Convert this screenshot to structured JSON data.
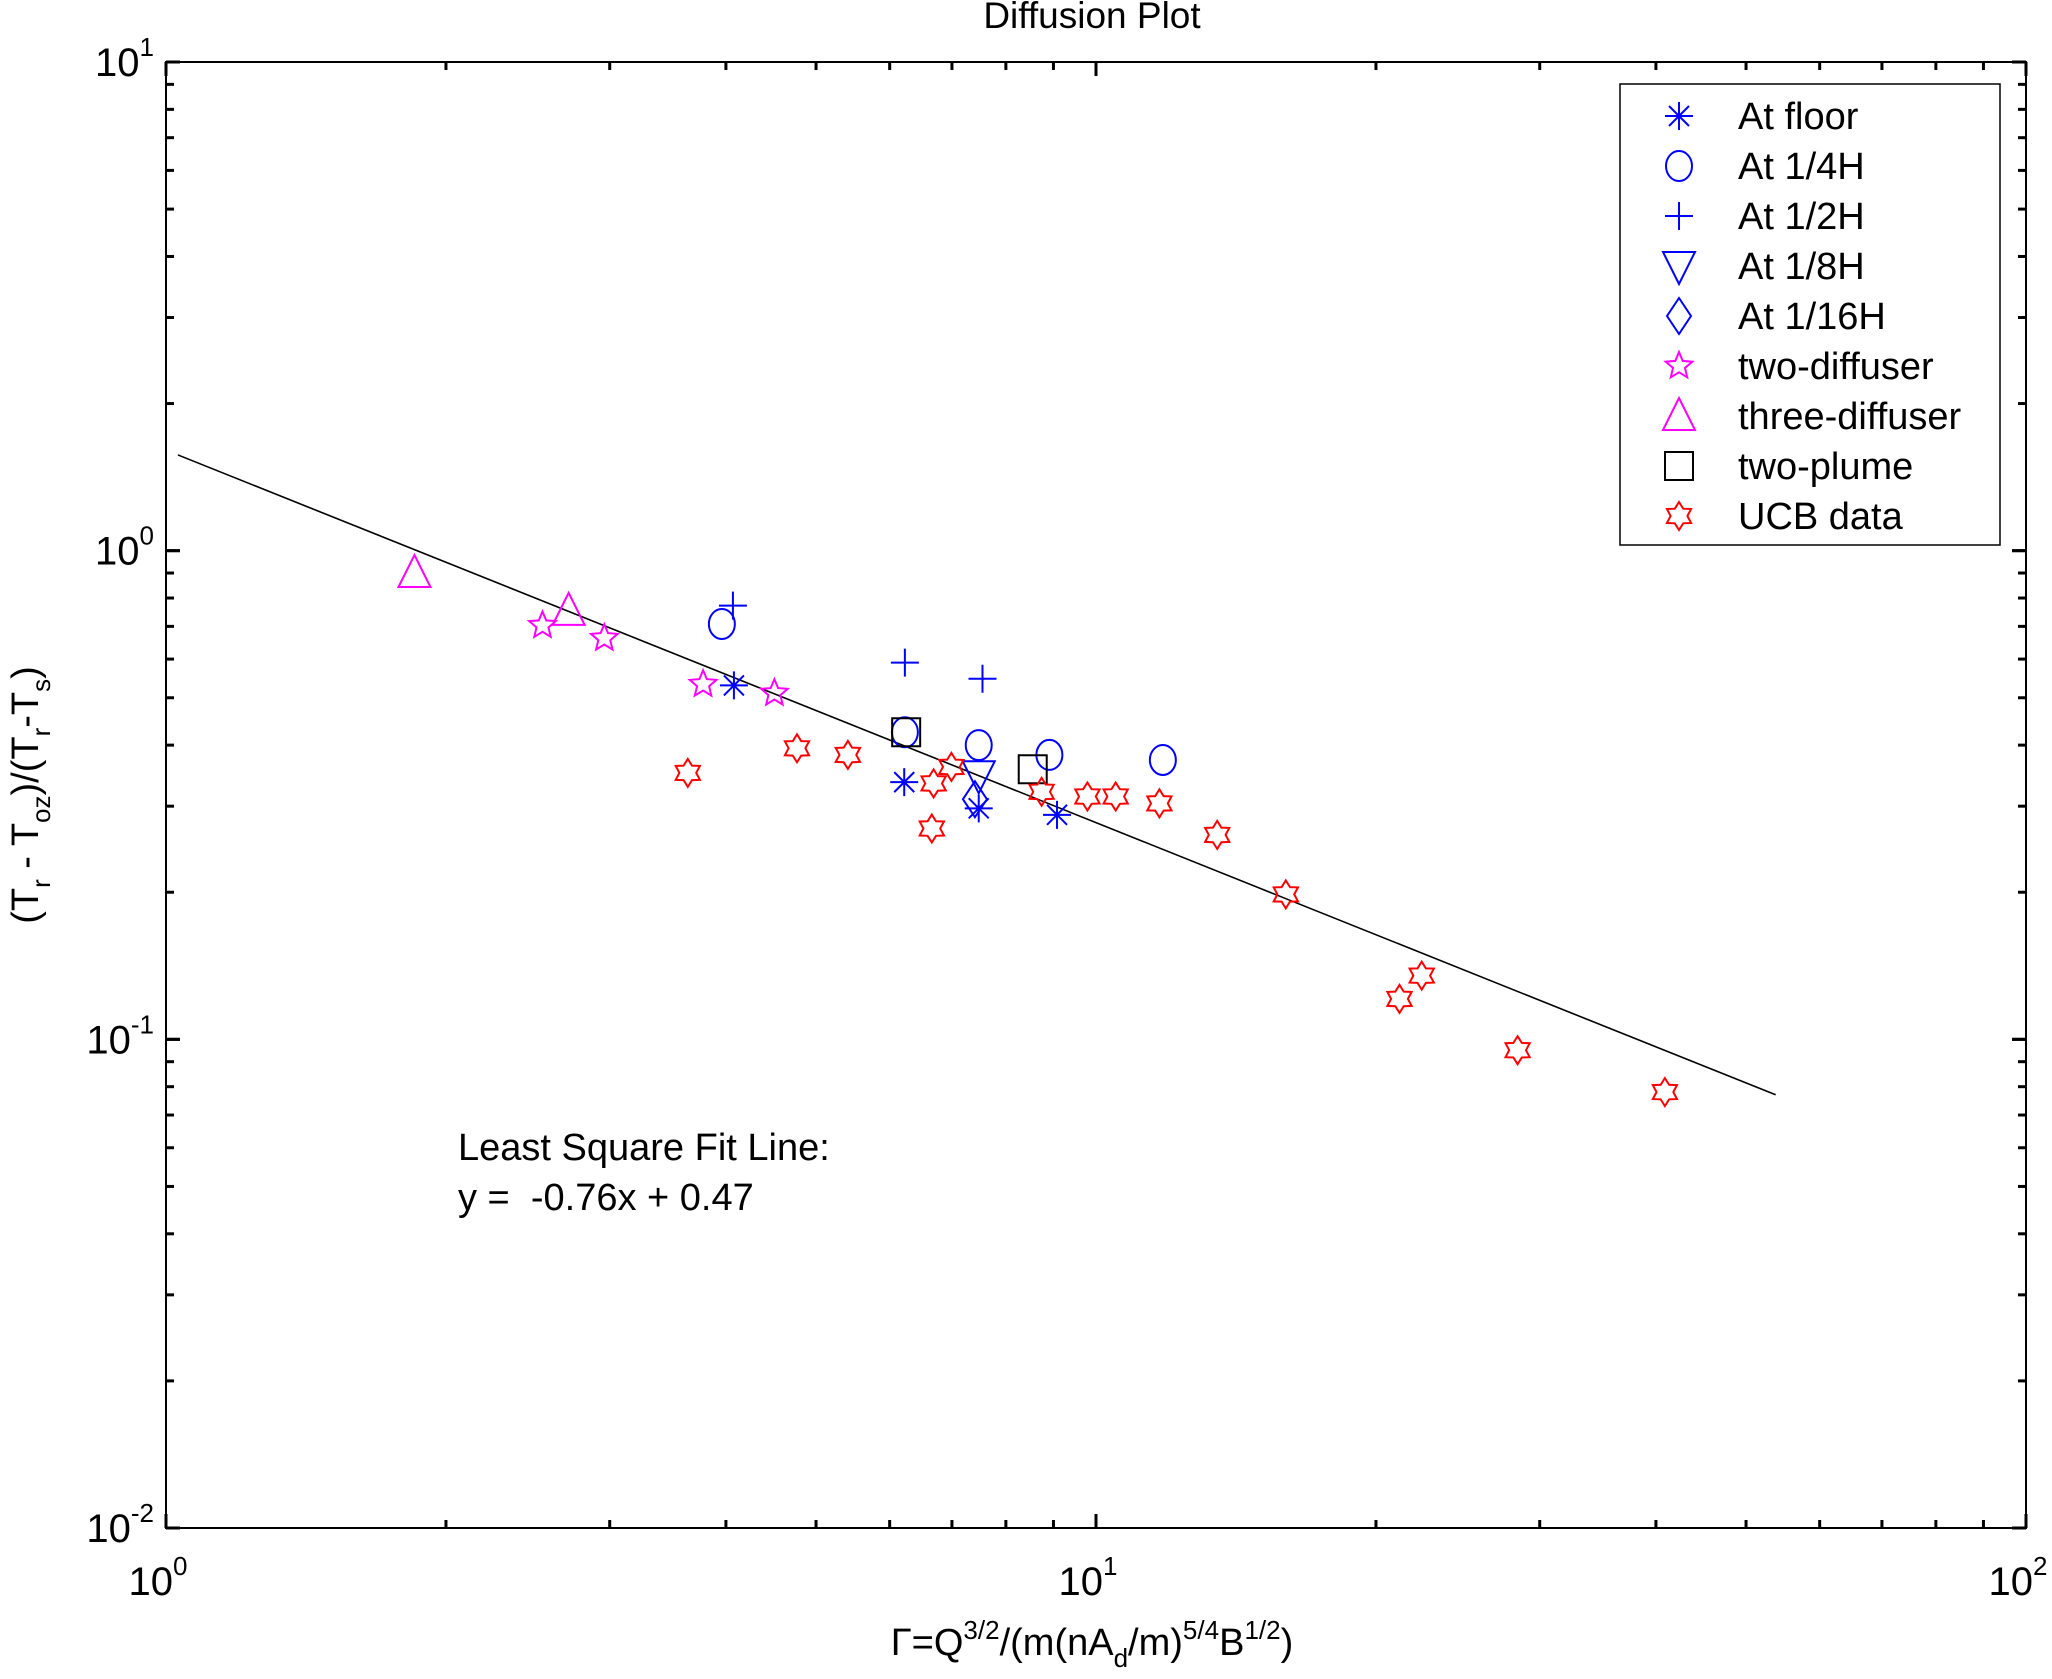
{
  "chart_data": {
    "type": "scatter",
    "title": "Diffusion Plot",
    "xlabel_parts": [
      {
        "t": "Γ=Q",
        "s": "n"
      },
      {
        "t": "3/2",
        "s": "sup"
      },
      {
        "t": "/(m(nA",
        "s": "n"
      },
      {
        "t": "d",
        "s": "sub"
      },
      {
        "t": "/m)",
        "s": "n"
      },
      {
        "t": "5/4",
        "s": "sup"
      },
      {
        "t": "B",
        "s": "n"
      },
      {
        "t": "1/2",
        "s": "sup"
      },
      {
        "t": ")",
        "s": "n"
      }
    ],
    "ylabel_parts": [
      {
        "t": "(T",
        "s": "n"
      },
      {
        "t": "r",
        "s": "sub"
      },
      {
        "t": " - T",
        "s": "n"
      },
      {
        "t": "oz",
        "s": "sub"
      },
      {
        "t": ")/(T",
        "s": "n"
      },
      {
        "t": "r",
        "s": "sub"
      },
      {
        "t": "-T",
        "s": "n"
      },
      {
        "t": "s",
        "s": "sub"
      },
      {
        "t": ")",
        "s": "n"
      }
    ],
    "xscale": "log",
    "yscale": "log",
    "xlim": [
      1,
      100
    ],
    "ylim": [
      0.01,
      10
    ],
    "xticks": [
      {
        "base": "10",
        "exp": "0"
      },
      {
        "base": "10",
        "exp": "1"
      },
      {
        "base": "10",
        "exp": "2"
      }
    ],
    "yticks": [
      {
        "base": "10",
        "exp": "-2"
      },
      {
        "base": "10",
        "exp": "-1"
      },
      {
        "base": "10",
        "exp": "0"
      },
      {
        "base": "10",
        "exp": "1"
      }
    ],
    "grid": false,
    "legend_position": "top-right",
    "series": [
      {
        "name": "At floor",
        "marker": "asterisk",
        "color": "#0000ff",
        "x": [
          4.08,
          6.22,
          7.48,
          9.08
        ],
        "y": [
          0.53,
          0.336,
          0.297,
          0.288
        ]
      },
      {
        "name": "At 1/4H",
        "marker": "circle",
        "color": "#0000ff",
        "x": [
          3.96,
          6.23,
          7.48,
          8.91,
          11.8
        ],
        "y": [
          0.708,
          0.425,
          0.4,
          0.382,
          0.373
        ]
      },
      {
        "name": "At 1/2H",
        "marker": "plus",
        "color": "#0000ff",
        "x": [
          4.07,
          6.23,
          7.55
        ],
        "y": [
          0.772,
          0.59,
          0.547
        ]
      },
      {
        "name": "At 1/8H",
        "marker": "triangle-down",
        "color": "#0000ff",
        "x": [
          7.48
        ],
        "y": [
          0.347
        ]
      },
      {
        "name": "At 1/16H",
        "marker": "diamond",
        "color": "#0000ff",
        "x": [
          7.41
        ],
        "y": [
          0.31
        ]
      },
      {
        "name": "two-diffuser",
        "marker": "pentagram",
        "color": "#ff00ff",
        "x": [
          2.54,
          2.96,
          3.78,
          4.51
        ],
        "y": [
          0.703,
          0.662,
          0.533,
          0.511
        ]
      },
      {
        "name": "three-diffuser",
        "marker": "triangle-up",
        "color": "#ff00ff",
        "x": [
          1.85,
          2.71
        ],
        "y": [
          0.9,
          0.753
        ]
      },
      {
        "name": "two-plume",
        "marker": "square",
        "color": "#000000",
        "x": [
          6.25,
          8.55
        ],
        "y": [
          0.425,
          0.357
        ]
      },
      {
        "name": "UCB data",
        "marker": "hexagram",
        "color": "#ff0000",
        "x": [
          3.64,
          4.77,
          5.41,
          6.66,
          6.69,
          6.99,
          8.74,
          9.79,
          10.5,
          11.7,
          13.5,
          16.0,
          21.2,
          22.4,
          28.4,
          40.9
        ],
        "y": [
          0.351,
          0.394,
          0.382,
          0.27,
          0.334,
          0.361,
          0.321,
          0.314,
          0.314,
          0.304,
          0.262,
          0.198,
          0.121,
          0.135,
          0.095,
          0.078
        ]
      }
    ],
    "fit_line": {
      "x": [
        1.03,
        53.8
      ],
      "y": [
        1.57,
        0.077
      ],
      "color": "#000000"
    },
    "annotation": [
      "Least Square Fit Line:",
      "y =  -0.76x + 0.47"
    ]
  }
}
